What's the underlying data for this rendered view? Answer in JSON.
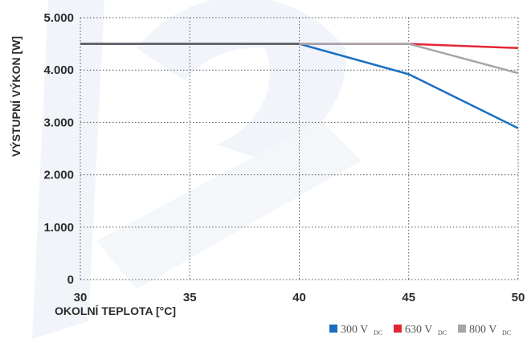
{
  "chart_data": {
    "type": "line",
    "xlabel": "OKOLNÍ TEPLOTA [°C]",
    "ylabel": "VÝSTUPNÍ VÝKON [W]",
    "x": [
      30,
      35,
      40,
      45,
      50
    ],
    "x_ticks": [
      "30",
      "35",
      "40",
      "45",
      "50"
    ],
    "y_ticks": [
      "0",
      "1.000",
      "2.000",
      "3.000",
      "4.000",
      "5.000"
    ],
    "xlim": [
      30,
      50
    ],
    "ylim": [
      0,
      5000
    ],
    "grid": true,
    "legend_position": "bottom-right",
    "series": [
      {
        "name": "300 V",
        "subscript": "DC",
        "color": "#1a6fc0",
        "points": [
          [
            30,
            4500
          ],
          [
            40,
            4500
          ],
          [
            45,
            3920
          ],
          [
            50,
            2890
          ]
        ]
      },
      {
        "name": "630 V",
        "subscript": "DC",
        "color": "#e32636",
        "points": [
          [
            30,
            4500
          ],
          [
            45,
            4500
          ],
          [
            50,
            4420
          ]
        ]
      },
      {
        "name": "800 V",
        "subscript": "DC",
        "color": "#a3a7ab",
        "points": [
          [
            30,
            4500
          ],
          [
            45,
            4500
          ],
          [
            50,
            3940
          ]
        ]
      }
    ],
    "overlay_color": "#5a5f66"
  }
}
